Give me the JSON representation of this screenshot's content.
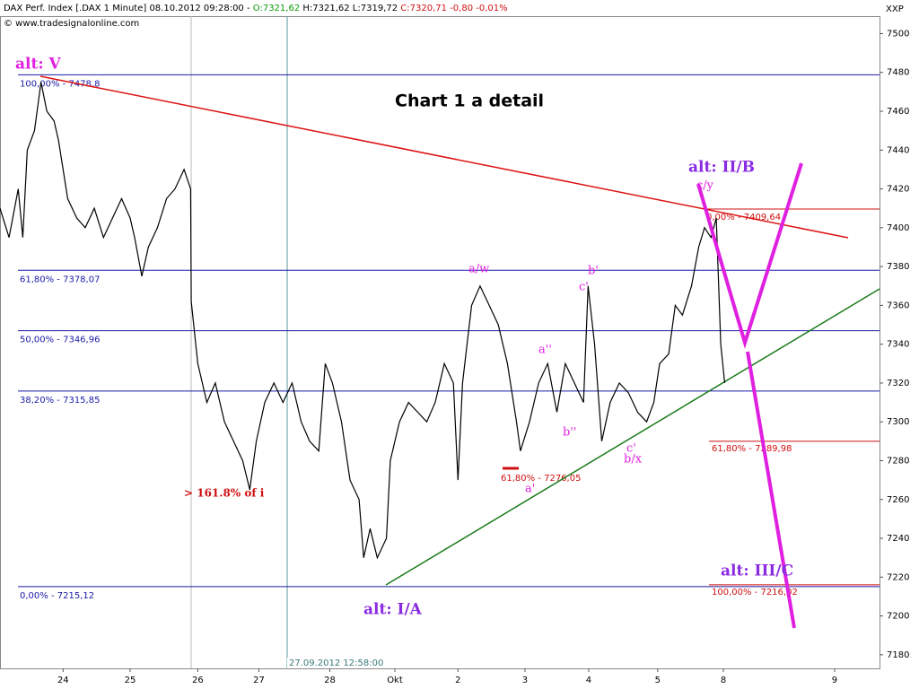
{
  "chart_data": {
    "type": "line",
    "header": {
      "instrument": "DAX Perf. Index [.DAX 1 Minute] 08.10.2012 09:28:00 -",
      "open": "O:7321,62",
      "high_low": "H:7321,62 L:7319,72",
      "close": "C:7320,71",
      "change": "-0,80 -0,01%",
      "copyright": "© www.tradesignalonline.com",
      "axis_id": "XXP"
    },
    "title": "Chart 1 a detail",
    "cursor_label": "27.09.2012 12:58:00",
    "color": "#000000",
    "x": [
      -0.97,
      -0.83,
      -0.69,
      -0.62,
      -0.55,
      -0.44,
      -0.34,
      -0.25,
      -0.14,
      -0.07,
      0,
      0.07,
      0.21,
      0.34,
      0.48,
      0.62,
      0.76,
      0.9,
      1.03,
      1.1,
      1.21,
      1.31,
      1.45,
      1.59,
      1.72,
      1.86,
      1.96,
      1.97,
      2.07,
      2.21,
      2.34,
      2.48,
      2.62,
      2.76,
      2.87,
      2.97,
      3.1,
      3.24,
      3.38,
      3.52,
      3.66,
      3.79,
      3.93,
      4.03,
      4.14,
      4.28,
      4.41,
      4.55,
      4.62,
      4.72,
      4.83,
      4.97,
      5.03,
      5.17,
      5.31,
      5.45,
      5.59,
      5.72,
      5.86,
      6.0,
      6.07,
      6.14,
      6.21,
      6.28,
      6.41,
      6.55,
      6.69,
      6.83,
      6.97,
      7.03,
      7.17,
      7.31,
      7.45,
      7.59,
      7.72,
      7.86,
      8.0,
      8.07,
      8.17,
      8.28,
      8.41,
      8.55,
      8.69,
      8.83,
      8.97,
      9.08,
      9.17,
      9.31,
      9.41,
      9.52,
      9.66,
      9.77,
      9.86,
      9.96,
      10.04,
      10.11,
      10.17
    ],
    "values": [
      7410,
      7395,
      7420,
      7395,
      7440,
      7450,
      7475,
      7460,
      7455,
      7445,
      7430,
      7415,
      7405,
      7400,
      7410,
      7395,
      7405,
      7415,
      7405,
      7395,
      7375,
      7390,
      7400,
      7415,
      7420,
      7430,
      7420,
      7362,
      7330,
      7310,
      7320,
      7300,
      7290,
      7280,
      7265,
      7290,
      7310,
      7320,
      7310,
      7320,
      7300,
      7290,
      7285,
      7330,
      7320,
      7300,
      7270,
      7260,
      7230,
      7245,
      7230,
      7240,
      7280,
      7300,
      7310,
      7305,
      7300,
      7310,
      7330,
      7320,
      7270,
      7320,
      7340,
      7360,
      7370,
      7360,
      7350,
      7330,
      7300,
      7285,
      7300,
      7320,
      7330,
      7305,
      7330,
      7320,
      7310,
      7370,
      7340,
      7290,
      7310,
      7320,
      7315,
      7305,
      7300,
      7310,
      7330,
      7335,
      7360,
      7355,
      7370,
      7390,
      7400,
      7395,
      7405,
      7340,
      7320
    ],
    "xlim": [
      -0.97,
      12.55
    ],
    "xticks": [
      {
        "value": 0,
        "label": "24"
      },
      {
        "value": 1.03,
        "label": "25"
      },
      {
        "value": 2.07,
        "label": "26"
      },
      {
        "value": 3.01,
        "label": "27"
      },
      {
        "value": 4.1,
        "label": "28"
      },
      {
        "value": 5.1,
        "label": "Okt"
      },
      {
        "value": 6.07,
        "label": "2"
      },
      {
        "value": 7.1,
        "label": "3"
      },
      {
        "value": 8.08,
        "label": "4"
      },
      {
        "value": 9.14,
        "label": "5"
      },
      {
        "value": 10.15,
        "label": "8"
      },
      {
        "value": 11.86,
        "label": "9"
      }
    ],
    "ylim": [
      7173,
      7509
    ],
    "yticks": [
      7180,
      7200,
      7220,
      7240,
      7260,
      7280,
      7300,
      7320,
      7340,
      7360,
      7380,
      7400,
      7420,
      7440,
      7460,
      7480,
      7500
    ],
    "levels": [
      {
        "label": "100,00% - 7478,8",
        "value": 7478.8,
        "color": "#1a1aa8"
      },
      {
        "label": "61,80% - 7378,07",
        "value": 7378.07,
        "color": "#1a1aa8"
      },
      {
        "label": "50,00% - 7346,96",
        "value": 7346.96,
        "color": "#1a1aa8"
      },
      {
        "label": "38,20% - 7315,85",
        "value": 7315.85,
        "color": "#1a1aa8"
      },
      {
        "label": "0,00% - 7215,12",
        "value": 7215.12,
        "color": "#1a1aa8"
      },
      {
        "label": "0,00% - 7409,64",
        "value": 7409.64,
        "color": "#d01010"
      },
      {
        "label": "61,80% - 7289,98",
        "value": 7289.98,
        "color": "#d01010"
      },
      {
        "label": "100,00% - 7216,02",
        "value": 7216.02,
        "color": "#d01010"
      },
      {
        "label": "61,80% - 7276,05",
        "value": 7276.05,
        "color": "#d01010"
      }
    ],
    "annotations": [
      {
        "text": "alt: V",
        "color": "#e020e0"
      },
      {
        "text": "alt: II/B",
        "color": "#8a2be2"
      },
      {
        "text": "c/y",
        "color": "#e020e0"
      },
      {
        "text": "a/w",
        "color": "#e020e0"
      },
      {
        "text": "c'",
        "color": "#e020e0"
      },
      {
        "text": "b'",
        "color": "#e020e0"
      },
      {
        "text": "a''",
        "color": "#e020e0"
      },
      {
        "text": "b''",
        "color": "#e020e0"
      },
      {
        "text": "c'",
        "color": "#e020e0"
      },
      {
        "text": "b/x",
        "color": "#e020e0"
      },
      {
        "text": "a'",
        "color": "#e020e0"
      },
      {
        "text": "> 161.8% of i",
        "color": "#d01010"
      },
      {
        "text": "alt: I/A",
        "color": "#8a2be2"
      },
      {
        "text": "alt: III/C",
        "color": "#8a2be2"
      }
    ]
  }
}
